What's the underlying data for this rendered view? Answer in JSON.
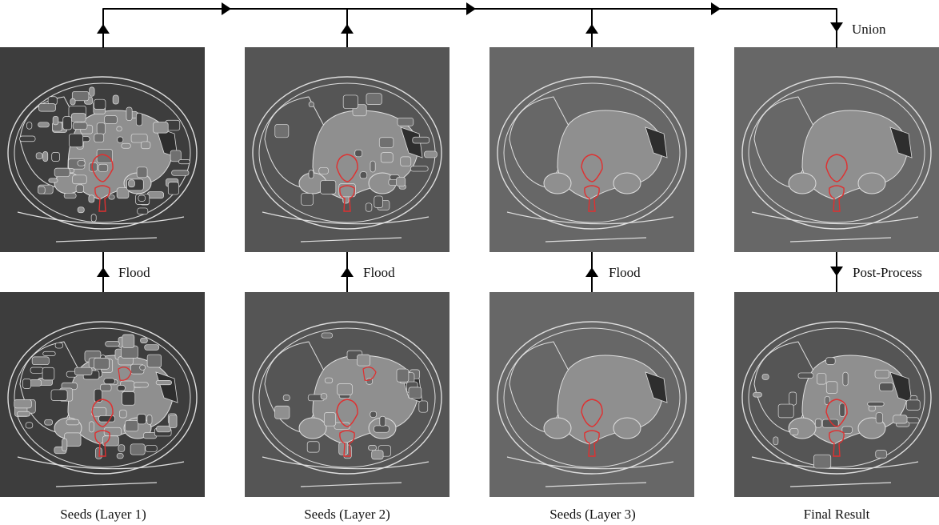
{
  "colors": {
    "background": "#ffffff",
    "line": "#000000",
    "seed_outline": "#e03030",
    "edge_light": "#dedede",
    "panel_dark": "#3d3d3d",
    "panel_mid": "#555555",
    "panel_light": "#676767",
    "region_light": "#8f8f8f",
    "region_dark": "#2e2e2e"
  },
  "top_row": [
    {
      "id": "merged-layer-1",
      "shade": "panel_dark",
      "detail": 3
    },
    {
      "id": "merged-layer-2",
      "shade": "panel_mid",
      "detail": 2
    },
    {
      "id": "merged-layer-3",
      "shade": "panel_light",
      "detail": 1
    },
    {
      "id": "union-result",
      "shade": "panel_light",
      "detail": 1
    }
  ],
  "bottom_row": [
    {
      "id": "seeds-layer-1",
      "shade": "panel_dark",
      "detail": 3,
      "caption": "Seeds (Layer 1)"
    },
    {
      "id": "seeds-layer-2",
      "shade": "panel_mid",
      "detail": 2,
      "caption": "Seeds (Layer 2)"
    },
    {
      "id": "seeds-layer-3",
      "shade": "panel_light",
      "detail": 1,
      "caption": "Seeds (Layer 3)"
    },
    {
      "id": "final-result",
      "shade": "panel_mid",
      "detail": 2,
      "caption": "Final Result"
    }
  ],
  "step_labels": [
    "Flood",
    "Flood",
    "Flood",
    "Post-Process"
  ],
  "union_label": "Union",
  "icons": [
    "arrow-up-icon",
    "arrow-right-icon",
    "arrow-down-icon"
  ]
}
